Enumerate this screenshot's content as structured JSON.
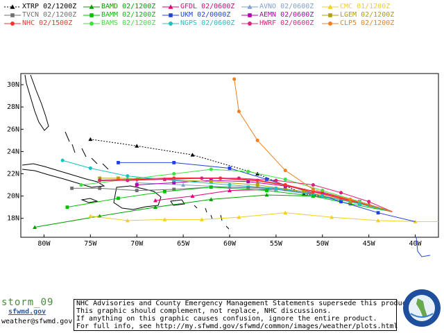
{
  "legend": [
    {
      "label": "XTRP  02/1200Z",
      "color": "#000000",
      "marker": "triangle",
      "dashed": true
    },
    {
      "label": "BAMD 02/1200Z",
      "color": "#00a000",
      "marker": "triangle"
    },
    {
      "label": "GFDL  02/0600Z",
      "color": "#e0007a",
      "marker": "triangle"
    },
    {
      "label": "AVNO 02/0600Z",
      "color": "#7f9fd0",
      "marker": "triangle"
    },
    {
      "label": "CMC  01/1200Z",
      "color": "#f0d020",
      "marker": "triangle"
    },
    {
      "label": "TVCN  02/1200Z",
      "color": "#707070",
      "marker": "square"
    },
    {
      "label": "BAMM 02/1200Z",
      "color": "#00c000",
      "marker": "square"
    },
    {
      "label": "UKM  02/0000Z",
      "color": "#2040e0",
      "marker": "square"
    },
    {
      "label": "AEMN 02/0600Z",
      "color": "#b000b0",
      "marker": "square"
    },
    {
      "label": "LGEM 02/1200Z",
      "color": "#b0a000",
      "marker": "square"
    },
    {
      "label": "NHC  02/1500Z",
      "color": "#ff3030",
      "marker": "circle"
    },
    {
      "label": "BAMS 02/1200Z",
      "color": "#40e040",
      "marker": "circle"
    },
    {
      "label": "NGPS 02/0600Z",
      "color": "#20c0c0",
      "marker": "circle"
    },
    {
      "label": "HWRF 02/0600Z",
      "color": "#e0207a",
      "marker": "circle"
    },
    {
      "label": "CLP5 02/1200Z",
      "color": "#f08020",
      "marker": "circle"
    }
  ],
  "chart_data": {
    "type": "line",
    "xlabel": "",
    "ylabel": "",
    "x_ticks": [
      "80W",
      "75W",
      "70W",
      "65W",
      "60W",
      "55W",
      "50W",
      "45W",
      "40W"
    ],
    "y_ticks": [
      "18N",
      "20N",
      "22N",
      "24N",
      "26N",
      "28N",
      "30N"
    ],
    "xlim": [
      -82.5,
      -37.5
    ],
    "ylim": [
      16.3,
      31.0
    ],
    "series": [
      {
        "name": "XTRP",
        "color": "#000000",
        "points": [
          [
            -42.5,
            18.6
          ],
          [
            -48.0,
            19.7
          ],
          [
            -52.0,
            20.2
          ],
          [
            -57.0,
            22.0
          ],
          [
            -64.0,
            23.7
          ],
          [
            -70.0,
            24.5
          ],
          [
            -75.0,
            25.1
          ]
        ]
      },
      {
        "name": "BAMD",
        "color": "#00a000",
        "points": [
          [
            -42.5,
            18.6
          ],
          [
            -47.0,
            19.6
          ],
          [
            -51.0,
            20.0
          ],
          [
            -56.0,
            20.1
          ],
          [
            -62.0,
            19.7
          ],
          [
            -68.0,
            19.0
          ],
          [
            -74.0,
            18.2
          ],
          [
            -81.0,
            17.2
          ]
        ]
      },
      {
        "name": "GFDL",
        "color": "#e0007a",
        "points": [
          [
            -42.5,
            18.6
          ],
          [
            -47.0,
            19.5
          ],
          [
            -51.0,
            20.2
          ],
          [
            -55.0,
            20.6
          ],
          [
            -60.0,
            20.5
          ],
          [
            -64.0,
            20.0
          ],
          [
            -68.0,
            19.6
          ]
        ]
      },
      {
        "name": "AVNO",
        "color": "#7f9fd0",
        "points": [
          [
            -42.5,
            18.6
          ],
          [
            -46.0,
            19.4
          ],
          [
            -50.0,
            20.0
          ],
          [
            -55.0,
            20.6
          ],
          [
            -60.0,
            20.8
          ],
          [
            -65.0,
            21.0
          ],
          [
            -70.0,
            21.2
          ]
        ]
      },
      {
        "name": "CMC",
        "color": "#f0d020",
        "points": [
          [
            -37.5,
            17.7
          ],
          [
            -40.0,
            17.7
          ],
          [
            -44.0,
            17.8
          ],
          [
            -49.0,
            18.1
          ],
          [
            -54.0,
            18.5
          ],
          [
            -59.0,
            18.1
          ],
          [
            -63.0,
            17.9
          ],
          [
            -67.0,
            17.9
          ],
          [
            -71.0,
            17.8
          ],
          [
            -75.0,
            18.2
          ]
        ]
      },
      {
        "name": "TVCN",
        "color": "#707070",
        "points": [
          [
            -42.5,
            18.6
          ],
          [
            -46.0,
            19.3
          ],
          [
            -50.0,
            20.0
          ],
          [
            -54.0,
            20.6
          ],
          [
            -58.0,
            20.8
          ],
          [
            -62.0,
            20.8
          ],
          [
            -66.0,
            20.6
          ],
          [
            -70.0,
            20.5
          ],
          [
            -74.0,
            20.7
          ],
          [
            -77.0,
            20.7
          ]
        ]
      },
      {
        "name": "BAMM",
        "color": "#00c000",
        "points": [
          [
            -42.5,
            18.6
          ],
          [
            -47.0,
            19.3
          ],
          [
            -51.0,
            20.0
          ],
          [
            -56.0,
            20.5
          ],
          [
            -62.0,
            20.8
          ],
          [
            -67.0,
            20.4
          ],
          [
            -72.0,
            19.8
          ],
          [
            -77.5,
            19.0
          ]
        ]
      },
      {
        "name": "UKM",
        "color": "#2040e0",
        "points": [
          [
            -40.0,
            17.7
          ],
          [
            -44.0,
            18.5
          ],
          [
            -48.0,
            19.5
          ],
          [
            -52.0,
            20.5
          ],
          [
            -56.0,
            21.5
          ],
          [
            -60.0,
            22.5
          ],
          [
            -66.0,
            23.0
          ],
          [
            -72.0,
            23.0
          ]
        ]
      },
      {
        "name": "AEMN",
        "color": "#b000b0",
        "points": [
          [
            -42.5,
            18.6
          ],
          [
            -46.0,
            19.5
          ],
          [
            -50.0,
            20.3
          ],
          [
            -54.0,
            20.9
          ],
          [
            -58.0,
            21.3
          ],
          [
            -62.0,
            21.4
          ],
          [
            -66.0,
            21.2
          ],
          [
            -70.0,
            21.0
          ]
        ]
      },
      {
        "name": "LGEM",
        "color": "#b0a000",
        "points": [
          [
            -42.5,
            18.6
          ],
          [
            -47.0,
            19.5
          ],
          [
            -52.0,
            20.4
          ],
          [
            -57.0,
            21.0
          ],
          [
            -62.0,
            21.3
          ],
          [
            -67.0,
            21.5
          ],
          [
            -72.0,
            21.6
          ],
          [
            -74.0,
            21.6
          ]
        ]
      },
      {
        "name": "NHC",
        "color": "#ff3030",
        "points": [
          [
            -42.5,
            18.6
          ],
          [
            -45.0,
            19.2
          ],
          [
            -48.0,
            19.8
          ],
          [
            -51.0,
            20.4
          ],
          [
            -54.0,
            21.0
          ],
          [
            -57.0,
            21.4
          ],
          [
            -61.0,
            21.6
          ],
          [
            -66.0,
            21.6
          ],
          [
            -70.0,
            21.5
          ],
          [
            -74.0,
            21.4
          ]
        ]
      },
      {
        "name": "BAMS",
        "color": "#40e040",
        "points": [
          [
            -42.5,
            18.6
          ],
          [
            -46.0,
            19.5
          ],
          [
            -50.0,
            20.5
          ],
          [
            -54.0,
            21.5
          ],
          [
            -58.0,
            22.2
          ],
          [
            -62.0,
            22.4
          ],
          [
            -66.0,
            22.0
          ],
          [
            -71.0,
            21.5
          ],
          [
            -76.0,
            21.0
          ]
        ]
      },
      {
        "name": "NGPS",
        "color": "#20c0c0",
        "points": [
          [
            -42.5,
            18.6
          ],
          [
            -46.0,
            19.3
          ],
          [
            -50.0,
            20.0
          ],
          [
            -55.0,
            20.7
          ],
          [
            -60.0,
            21.0
          ],
          [
            -66.0,
            21.4
          ],
          [
            -71.0,
            21.8
          ],
          [
            -75.0,
            22.5
          ],
          [
            -78.0,
            23.2
          ]
        ]
      },
      {
        "name": "HWRF",
        "color": "#e0207a",
        "points": [
          [
            -42.5,
            18.6
          ],
          [
            -45.0,
            19.5
          ],
          [
            -48.0,
            20.3
          ],
          [
            -51.0,
            21.0
          ],
          [
            -55.0,
            21.4
          ],
          [
            -59.0,
            21.6
          ],
          [
            -63.0,
            21.6
          ],
          [
            -67.0,
            21.5
          ],
          [
            -71.0,
            21.4
          ],
          [
            -74.0,
            21.4
          ]
        ]
      },
      {
        "name": "CLP5",
        "color": "#f08020",
        "points": [
          [
            -42.5,
            18.6
          ],
          [
            -47.0,
            19.7
          ],
          [
            -51.0,
            20.6
          ],
          [
            -54.0,
            22.3
          ],
          [
            -57.0,
            25.0
          ],
          [
            -59.0,
            27.6
          ],
          [
            -59.5,
            30.5
          ]
        ]
      }
    ],
    "grid": false,
    "legend_position": "top"
  },
  "logo": {
    "name": "storm_09",
    "site": "sfwmd.gov",
    "email": "weather@sfwmd.gov"
  },
  "disclaimer": [
    "NHC Advisories and County Emergency Management Statements supersede this product.",
    "This graphic should complement, not replace, NHC discussions.",
    "If anything on this graphic causes confusion, ignore the entire product.",
    "For full info, see  http://my.sfwmd.gov/sfwmd/common/images/weather/plots.html"
  ]
}
